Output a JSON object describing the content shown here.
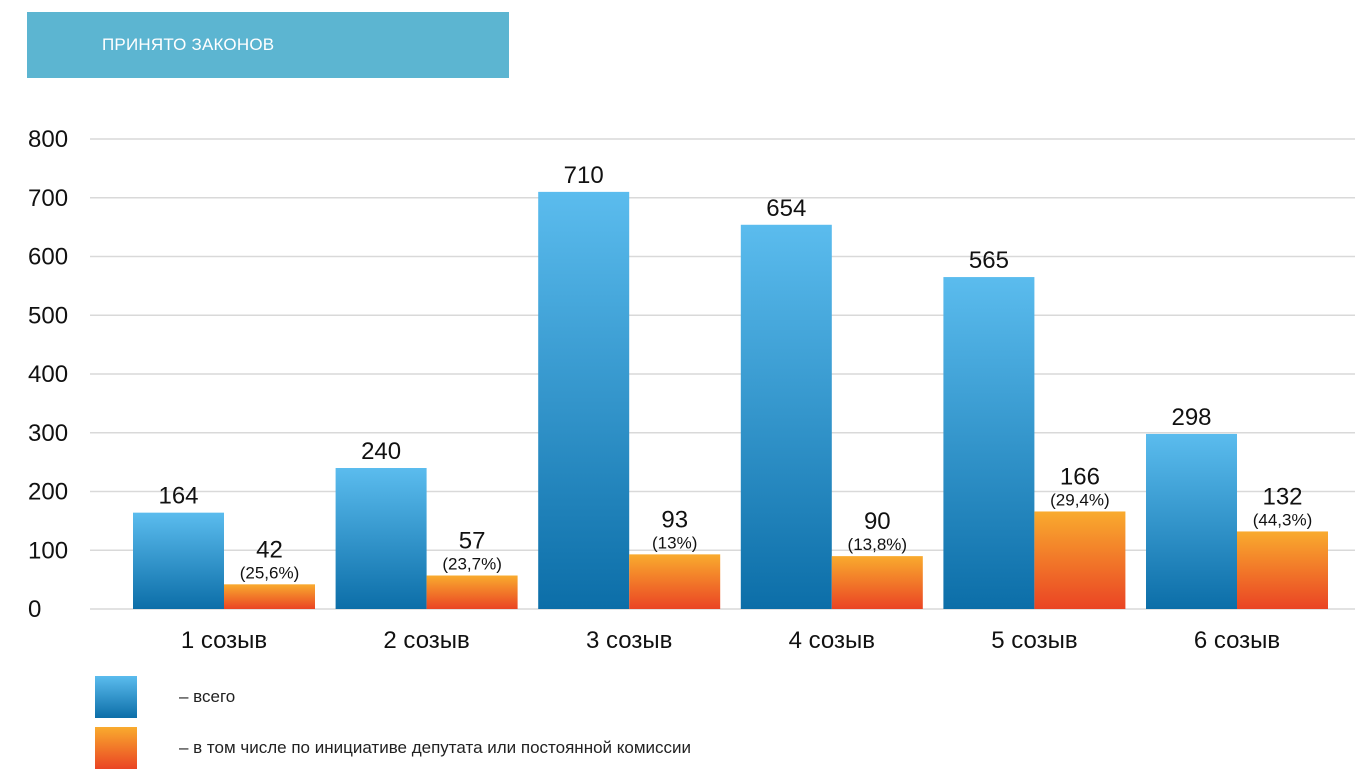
{
  "header": {
    "title": "ПРИНЯТО ЗАКОНОВ"
  },
  "colors": {
    "banner": "#5cb5d1",
    "total_top": "#5bbcee",
    "total_bottom": "#0c6ea8",
    "initiative_top": "#f9ab2e",
    "initiative_bottom": "#ea4424",
    "grid": "#d9d9d9"
  },
  "chart_data": {
    "type": "bar",
    "categories": [
      "1 созыв",
      "2 созыв",
      "3 созыв",
      "4 созыв",
      "5 созыв",
      "6 созыв"
    ],
    "ylim": [
      0,
      800
    ],
    "yticks": [
      0,
      100,
      200,
      300,
      400,
      500,
      600,
      700,
      800
    ],
    "grid": true,
    "legend_placement": "bottom-left",
    "series": [
      {
        "name": "– всего",
        "values": [
          164,
          240,
          710,
          654,
          565,
          298
        ]
      },
      {
        "name": "– в том числе по инициативе депутата или постоянной комиссии",
        "values": [
          42,
          57,
          93,
          90,
          166,
          132
        ],
        "percent_labels": [
          "(25,6%)",
          "(23,7%)",
          "(13%)",
          "(13,8%)",
          "(29,4%)",
          "(44,3%)"
        ]
      }
    ]
  }
}
